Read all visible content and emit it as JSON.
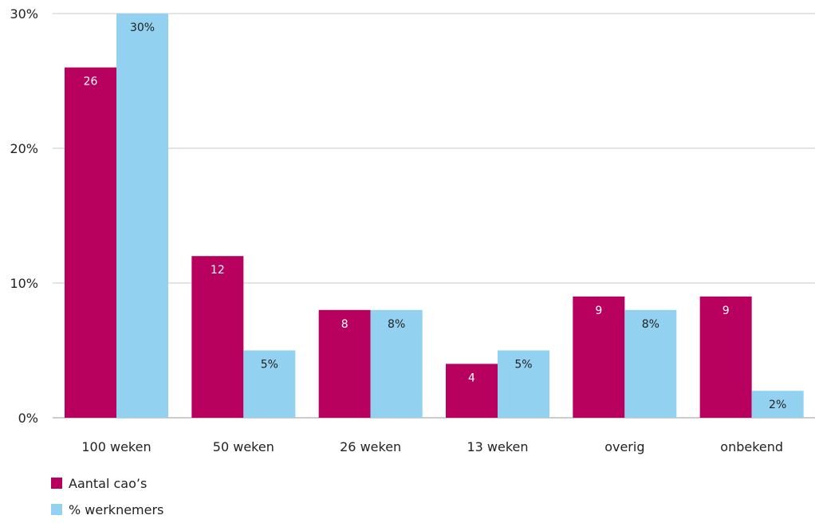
{
  "chart_data": {
    "type": "bar",
    "categories": [
      "100 weken",
      "50 weken",
      "26 weken",
      "13 weken",
      "overig",
      "onbekend"
    ],
    "series": [
      {
        "name": "Aantal cao’s",
        "values": [
          26,
          12,
          8,
          4,
          9,
          9
        ],
        "labels": [
          "26",
          "12",
          "8",
          "4",
          "9",
          "9"
        ],
        "color": "#b8005e",
        "label_color": "#ffffff"
      },
      {
        "name": "% werknemers",
        "values": [
          30,
          5,
          8,
          5,
          8,
          2
        ],
        "labels": [
          "30%",
          "5%",
          "8%",
          "5%",
          "8%",
          "2%"
        ],
        "color": "#92d2f0",
        "label_color": "#222222"
      }
    ],
    "y_ticks": [
      "0%",
      "10%",
      "20%",
      "30%"
    ],
    "ylim": [
      0,
      30
    ],
    "grid": true,
    "legend_position": "bottom-left"
  }
}
